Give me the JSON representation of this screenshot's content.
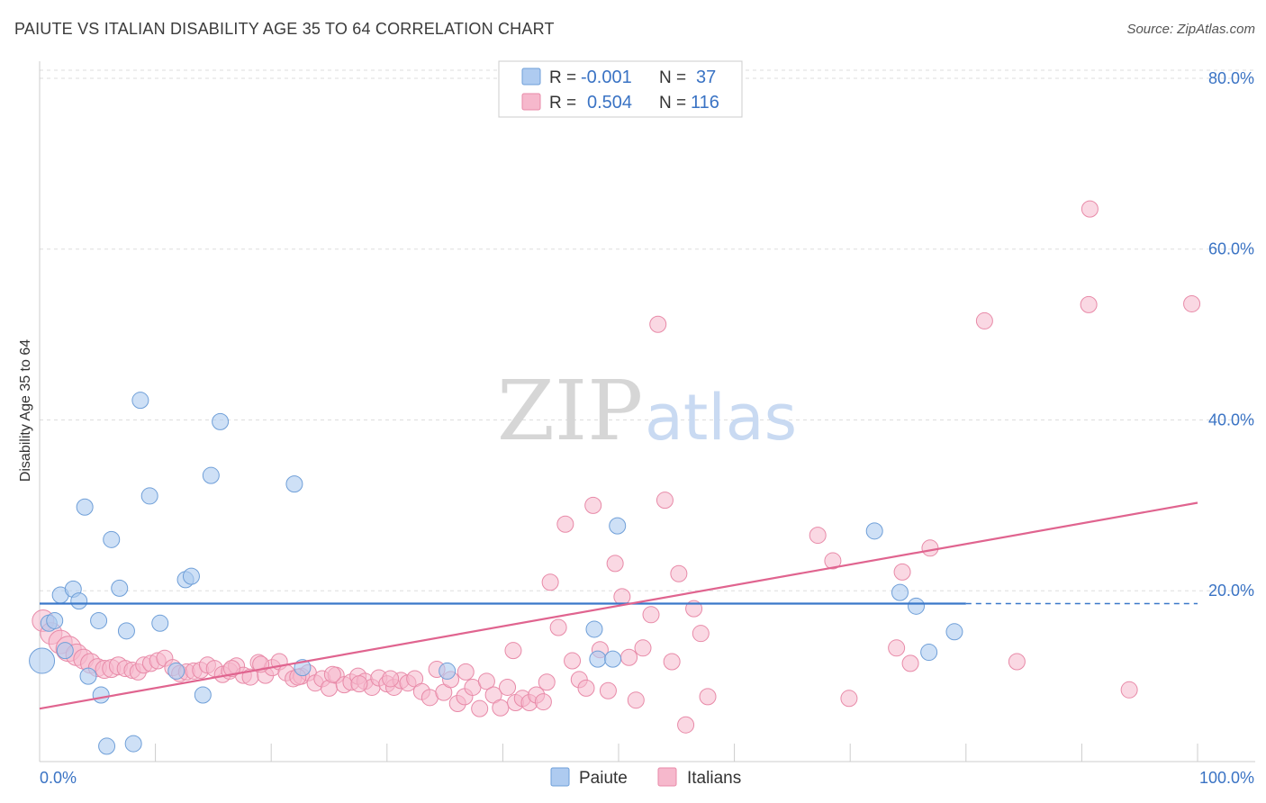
{
  "header": {
    "title": "PAIUTE VS ITALIAN DISABILITY AGE 35 TO 64 CORRELATION CHART",
    "source": "Source: ZipAtlas.com"
  },
  "watermark": {
    "zip": "ZIP",
    "atlas": "atlas"
  },
  "legend_box": {
    "rows": [
      {
        "r_label": "R =",
        "r_value": "-0.001",
        "n_label": "N =",
        "n_value": "37",
        "color": "#aecbf0"
      },
      {
        "r_label": "R =",
        "r_value": "0.504",
        "n_label": "N =",
        "n_value": "116",
        "color": "#f6b8cc"
      }
    ]
  },
  "bottom_legend": {
    "paiute": "Paiute",
    "italians": "Italians"
  },
  "colors": {
    "paiute_fill": "#aecbf0",
    "paiute_stroke": "#6f9fd8",
    "paiute_line": "#3a78c9",
    "italian_fill": "#f6b8cc",
    "italian_stroke": "#e88aa8",
    "italian_line": "#e0648f",
    "tick_text": "#3a73c4",
    "grid": "#dddddd"
  },
  "chart_data": {
    "type": "scatter",
    "title": "PAIUTE VS ITALIAN DISABILITY AGE 35 TO 64 CORRELATION CHART",
    "xlabel": "",
    "ylabel": "Disability Age 35 to 64",
    "xlim": [
      0,
      100
    ],
    "ylim": [
      0,
      82
    ],
    "x_tick_labels": [
      "0.0%",
      "100.0%"
    ],
    "y_ticks": [
      20,
      40,
      60,
      80
    ],
    "y_tick_labels": [
      "20.0%",
      "40.0%",
      "60.0%",
      "80.0%"
    ],
    "grid": true,
    "legend_position": "bottom-center",
    "series": [
      {
        "name": "Paiute",
        "r": -0.001,
        "n": 37,
        "trend": {
          "x0": 0,
          "y0": 18.5,
          "x1": 80,
          "y1": 18.5,
          "dash_to": 100
        },
        "points": [
          [
            0.2,
            11.8,
            14
          ],
          [
            0.8,
            16.2,
            9
          ],
          [
            1.3,
            16.5,
            9
          ],
          [
            1.8,
            19.5,
            9
          ],
          [
            2.2,
            13,
            9
          ],
          [
            2.9,
            20.2,
            9
          ],
          [
            3.4,
            18.8,
            9
          ],
          [
            3.9,
            29.8,
            9
          ],
          [
            4.2,
            10,
            9
          ],
          [
            5.1,
            16.5,
            9
          ],
          [
            5.3,
            7.8,
            9
          ],
          [
            5.8,
            1.8,
            9
          ],
          [
            6.2,
            26,
            9
          ],
          [
            6.9,
            20.3,
            9
          ],
          [
            7.5,
            15.3,
            9
          ],
          [
            8.1,
            2.1,
            9
          ],
          [
            8.7,
            42.3,
            9
          ],
          [
            9.5,
            31.1,
            9
          ],
          [
            10.4,
            16.2,
            9
          ],
          [
            11.8,
            10.6,
            9
          ],
          [
            12.6,
            21.3,
            9
          ],
          [
            13.1,
            21.7,
            9
          ],
          [
            14.1,
            7.8,
            9
          ],
          [
            14.8,
            33.5,
            9
          ],
          [
            15.6,
            39.8,
            9
          ],
          [
            22,
            32.5,
            9
          ],
          [
            22.7,
            11,
            9
          ],
          [
            35.2,
            10.6,
            9
          ],
          [
            47.9,
            15.5,
            9
          ],
          [
            48.2,
            12,
            9
          ],
          [
            49.5,
            12,
            9
          ],
          [
            49.9,
            27.6,
            9
          ],
          [
            72.1,
            27,
            9
          ],
          [
            74.3,
            19.8,
            9
          ],
          [
            75.7,
            18.2,
            9
          ],
          [
            76.8,
            12.8,
            9
          ],
          [
            79,
            15.2,
            9
          ]
        ]
      },
      {
        "name": "Italians",
        "r": 0.504,
        "n": 116,
        "trend": {
          "x0": 0,
          "y0": 6.2,
          "x1": 100,
          "y1": 30.3
        },
        "points": [
          [
            0.3,
            16.5,
            12
          ],
          [
            1,
            15,
            12
          ],
          [
            1.8,
            14,
            13
          ],
          [
            2.5,
            13.2,
            14
          ],
          [
            3.2,
            12.5,
            12
          ],
          [
            3.8,
            12,
            11
          ],
          [
            4.4,
            11.5,
            11
          ],
          [
            5,
            11,
            10
          ],
          [
            5.6,
            10.8,
            10
          ],
          [
            6.2,
            10.9,
            10
          ],
          [
            6.8,
            11.2,
            10
          ],
          [
            7.4,
            10.9,
            9
          ],
          [
            8,
            10.7,
            9
          ],
          [
            8.5,
            10.5,
            9
          ],
          [
            9,
            11.3,
            9
          ],
          [
            9.6,
            11.5,
            9
          ],
          [
            10.2,
            11.8,
            9
          ],
          [
            10.8,
            12.1,
            9
          ],
          [
            11.5,
            11,
            9
          ],
          [
            12.1,
            10.3,
            9
          ],
          [
            12.7,
            10.5,
            9
          ],
          [
            13.3,
            10.6,
            9
          ],
          [
            13.9,
            10.7,
            9
          ],
          [
            14.5,
            11.3,
            9
          ],
          [
            15.1,
            10.9,
            9
          ],
          [
            15.8,
            10.2,
            9
          ],
          [
            16.4,
            10.6,
            9
          ],
          [
            17,
            11.2,
            9
          ],
          [
            17.6,
            10.1,
            9
          ],
          [
            18.2,
            9.9,
            9
          ],
          [
            18.9,
            11.6,
            9
          ],
          [
            19.5,
            10.1,
            9
          ],
          [
            20.1,
            11,
            9
          ],
          [
            20.7,
            11.7,
            9
          ],
          [
            21.3,
            10.4,
            9
          ],
          [
            21.9,
            9.7,
            9
          ],
          [
            22.6,
            10,
            9
          ],
          [
            23.2,
            10.4,
            9
          ],
          [
            23.8,
            9.2,
            9
          ],
          [
            24.4,
            9.7,
            9
          ],
          [
            25,
            8.6,
            9
          ],
          [
            25.6,
            10.1,
            9
          ],
          [
            26.3,
            9,
            9
          ],
          [
            26.9,
            9.3,
            9
          ],
          [
            27.5,
            10,
            9
          ],
          [
            28.1,
            9.4,
            9
          ],
          [
            28.7,
            8.7,
            9
          ],
          [
            29.3,
            9.8,
            9
          ],
          [
            30,
            9.1,
            9
          ],
          [
            30.6,
            8.7,
            9
          ],
          [
            31.2,
            9.5,
            9
          ],
          [
            31.8,
            9.2,
            9
          ],
          [
            32.4,
            9.7,
            9
          ],
          [
            33,
            8.2,
            9
          ],
          [
            33.7,
            7.5,
            9
          ],
          [
            34.3,
            10.8,
            9
          ],
          [
            34.9,
            8.1,
            9
          ],
          [
            35.5,
            9.6,
            9
          ],
          [
            36.1,
            6.8,
            9
          ],
          [
            36.7,
            7.6,
            9
          ],
          [
            37.4,
            8.7,
            9
          ],
          [
            38,
            6.2,
            9
          ],
          [
            38.6,
            9.4,
            9
          ],
          [
            39.2,
            7.8,
            9
          ],
          [
            39.8,
            6.3,
            9
          ],
          [
            40.4,
            8.7,
            9
          ],
          [
            41.1,
            6.9,
            9
          ],
          [
            41.7,
            7.4,
            9
          ],
          [
            42.3,
            6.9,
            9
          ],
          [
            42.9,
            7.8,
            9
          ],
          [
            43.5,
            7,
            9
          ],
          [
            44.1,
            21,
            9
          ],
          [
            44.8,
            15.7,
            9
          ],
          [
            45.4,
            27.8,
            9
          ],
          [
            46,
            11.8,
            9
          ],
          [
            46.6,
            9.6,
            9
          ],
          [
            47.2,
            8.6,
            9
          ],
          [
            47.8,
            30,
            9
          ],
          [
            48.4,
            13.1,
            9
          ],
          [
            49.1,
            8.3,
            9
          ],
          [
            49.7,
            23.2,
            9
          ],
          [
            50.3,
            19.3,
            9
          ],
          [
            50.9,
            12.2,
            9
          ],
          [
            51.5,
            7.2,
            9
          ],
          [
            52.1,
            13.3,
            9
          ],
          [
            52.8,
            17.2,
            9
          ],
          [
            53.4,
            51.2,
            9
          ],
          [
            54,
            30.6,
            9
          ],
          [
            54.6,
            11.7,
            9
          ],
          [
            55.2,
            22,
            9
          ],
          [
            55.8,
            4.3,
            9
          ],
          [
            56.5,
            17.9,
            9
          ],
          [
            57.1,
            15,
            9
          ],
          [
            57.7,
            7.6,
            9
          ],
          [
            69.9,
            7.4,
            9
          ],
          [
            74.5,
            22.2,
            9
          ],
          [
            76.9,
            25,
            9
          ],
          [
            81.6,
            51.6,
            9
          ],
          [
            84.4,
            11.7,
            9
          ],
          [
            94.1,
            8.4,
            9
          ],
          [
            67.2,
            26.5,
            9
          ],
          [
            68.5,
            23.5,
            9
          ],
          [
            74,
            13.3,
            9
          ],
          [
            75.2,
            11.5,
            9
          ],
          [
            90.6,
            53.5,
            9
          ],
          [
            90.7,
            64.7,
            9
          ],
          [
            99.5,
            53.6,
            9
          ],
          [
            40.9,
            13,
            9
          ],
          [
            36.8,
            10.5,
            9
          ],
          [
            43.8,
            9.3,
            9
          ],
          [
            30.3,
            9.7,
            9
          ],
          [
            27.6,
            9.1,
            9
          ],
          [
            25.3,
            10.2,
            9
          ],
          [
            22.3,
            9.9,
            9
          ],
          [
            19.1,
            11.4,
            9
          ],
          [
            16.6,
            10.9,
            9
          ]
        ]
      }
    ]
  }
}
